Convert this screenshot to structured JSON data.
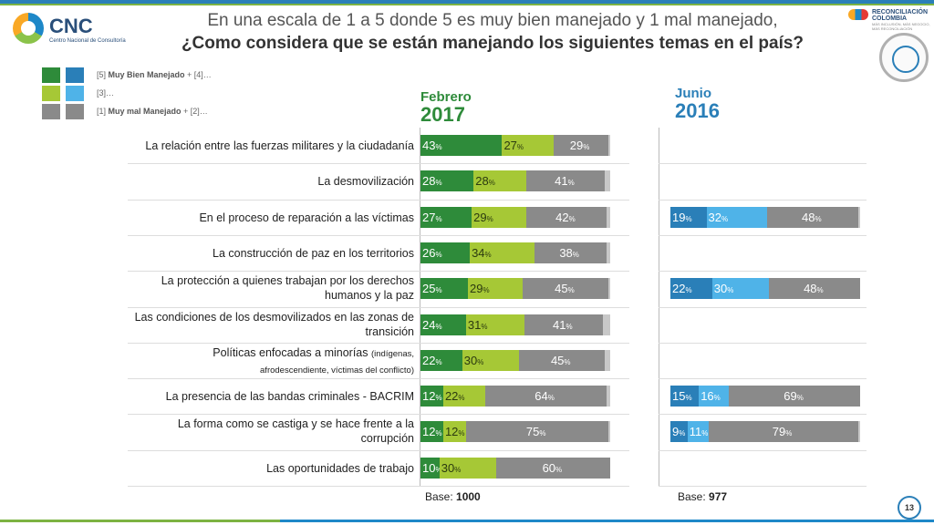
{
  "header": {
    "title_line1": "En una escala de 1 a 5 donde 5 es muy bien manejado y 1 mal manejado,",
    "title_line2": "¿Como considera que se están manejando los siguientes temas en el país?"
  },
  "logo": {
    "name": "CNC",
    "tagline": "Centro Nacional de Consultoría"
  },
  "brand": {
    "name": "RECONCILIACIÓN COLOMBIA",
    "tagline": "MÁS INCLUSIÓN, MÁS NEGOCIO, MÁS RECONCILIACIÓN"
  },
  "legend": [
    {
      "code": "[5]",
      "strong": "Muy Bien Manejado",
      "rest": " + [4]…"
    },
    {
      "code": "[3]…",
      "strong": "",
      "rest": ""
    },
    {
      "code": "[1]",
      "strong": "Muy mal Manejado",
      "rest": " + [2]…"
    }
  ],
  "colors": {
    "feb_top": "#2e8b3a",
    "feb_mid": "#a6c836",
    "gray": "#8a8a8a",
    "light_gray": "#c8c8c8",
    "jun_top": "#2a7fb8",
    "jun_mid": "#4fb3e8"
  },
  "pct_sign": "%",
  "chart_data": {
    "type": "bar",
    "stacked": true,
    "orientation": "horizontal",
    "title": "¿Como considera que se están manejando los siguientes temas en el país?",
    "series_names": [
      "[5] Muy Bien Manejado + [4]",
      "[3]",
      "[1] Muy mal Manejado + [2]"
    ],
    "categories": [
      "La relación entre las fuerzas militares y la ciudadanía",
      "La desmovilización",
      "En el proceso de reparación a las víctimas",
      "La construcción de paz en los territorios",
      "La protección a quienes trabajan por los derechos humanos y la paz",
      "Las condiciones de los desmovilizados en las zonas de transición",
      "Políticas enfocadas a minorías (indígenas, afrodescendiente, víctimas del conflicto)",
      "La presencia de las bandas criminales - BACRIM",
      "La forma como se castiga y se hace frente a la corrupción",
      "Las oportunidades de trabajo"
    ],
    "label_lines": [
      [
        "La relación entre las fuerzas militares y la ciudadanía"
      ],
      [
        "La desmovilización"
      ],
      [
        "En el proceso de reparación a las víctimas"
      ],
      [
        "La construcción de paz en los territorios"
      ],
      [
        "La protección a quienes trabajan por los derechos",
        "humanos y la paz"
      ],
      [
        "Las condiciones de los desmovilizados en las zonas de",
        "transición"
      ],
      [
        "Políticas enfocadas a minorías |(indígenas,",
        "afrodescendiente, víctimas del conflicto)"
      ],
      [
        "La presencia de las bandas criminales - BACRIM"
      ],
      [
        "La forma como se castiga y se hace frente a la",
        "corrupción"
      ],
      [
        "Las oportunidades de trabajo"
      ]
    ],
    "panels": [
      {
        "month": "Febrero",
        "year": "2017",
        "base_label": "Base:",
        "base": "1000",
        "values": [
          [
            43,
            27,
            29
          ],
          [
            28,
            28,
            41
          ],
          [
            27,
            29,
            42
          ],
          [
            26,
            34,
            38
          ],
          [
            25,
            29,
            45
          ],
          [
            24,
            31,
            41
          ],
          [
            22,
            30,
            45
          ],
          [
            12,
            22,
            64
          ],
          [
            12,
            12,
            75
          ],
          [
            10,
            30,
            60
          ]
        ]
      },
      {
        "month": "Junio",
        "year": "2016",
        "base_label": "Base:",
        "base": "977",
        "values": [
          null,
          null,
          [
            19,
            32,
            48
          ],
          null,
          [
            22,
            30,
            48
          ],
          null,
          null,
          [
            15,
            16,
            69
          ],
          [
            9,
            11,
            79
          ],
          null
        ]
      }
    ],
    "xlim": [
      0,
      100
    ]
  },
  "page": {
    "number": "13"
  }
}
